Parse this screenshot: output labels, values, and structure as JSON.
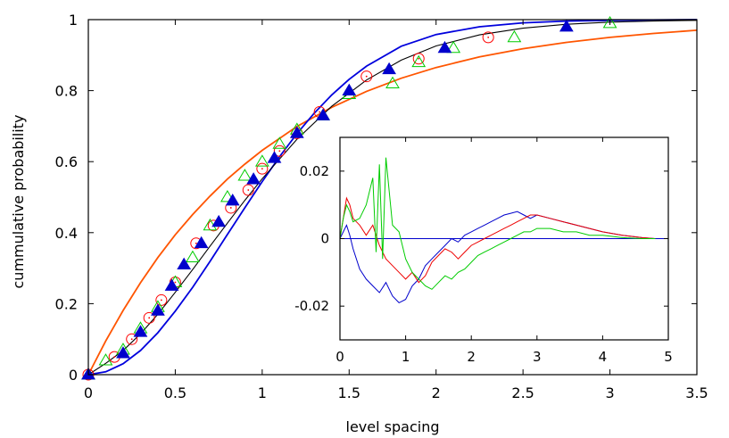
{
  "chart_data": [
    {
      "type": "line",
      "xlabel": "level spacing",
      "ylabel": "cummulative probability",
      "xlim": [
        0,
        3.5
      ],
      "ylim": [
        0,
        1
      ],
      "x_ticks": [
        "0",
        "0.5",
        "1",
        "1.5",
        "2",
        "2.5",
        "3",
        "3.5"
      ],
      "y_ticks": [
        "0",
        "0.2",
        "0.4",
        "0.6",
        "0.8",
        "1"
      ],
      "grid": false,
      "lines": [
        {
          "id": "orange-curve",
          "color": "#ff5500",
          "x": [
            0,
            0.1,
            0.2,
            0.3,
            0.4,
            0.5,
            0.6,
            0.7,
            0.8,
            0.9,
            1.0,
            1.2,
            1.4,
            1.6,
            1.8,
            2.0,
            2.25,
            2.5,
            2.75,
            3.0,
            3.25,
            3.5
          ],
          "y": [
            0,
            0.095,
            0.181,
            0.259,
            0.33,
            0.394,
            0.451,
            0.503,
            0.551,
            0.593,
            0.632,
            0.699,
            0.753,
            0.798,
            0.835,
            0.865,
            0.895,
            0.918,
            0.936,
            0.95,
            0.961,
            0.97
          ]
        },
        {
          "id": "blue-curve",
          "color": "#0000dd",
          "x": [
            0,
            0.1,
            0.2,
            0.3,
            0.4,
            0.5,
            0.6,
            0.7,
            0.8,
            0.9,
            1.0,
            1.1,
            1.2,
            1.3,
            1.4,
            1.5,
            1.6,
            1.8,
            2.0,
            2.25,
            2.5,
            2.75,
            3.0,
            3.5
          ],
          "y": [
            0,
            0.008,
            0.031,
            0.068,
            0.118,
            0.179,
            0.246,
            0.319,
            0.395,
            0.47,
            0.544,
            0.614,
            0.679,
            0.737,
            0.788,
            0.832,
            0.869,
            0.925,
            0.958,
            0.98,
            0.991,
            0.996,
            0.998,
            1.0
          ]
        },
        {
          "id": "black-curve",
          "color": "#000000",
          "x": [
            0,
            0.1,
            0.2,
            0.3,
            0.4,
            0.5,
            0.6,
            0.7,
            0.8,
            0.9,
            1.0,
            1.2,
            1.4,
            1.6,
            1.8,
            2.0,
            2.25,
            2.5,
            2.75,
            3.0,
            3.25,
            3.5
          ],
          "y": [
            0,
            0.032,
            0.068,
            0.115,
            0.17,
            0.232,
            0.296,
            0.362,
            0.427,
            0.491,
            0.552,
            0.663,
            0.756,
            0.83,
            0.886,
            0.926,
            0.957,
            0.976,
            0.987,
            0.993,
            0.996,
            0.998
          ]
        }
      ],
      "markers": [
        {
          "id": "red-circles",
          "shape": "circle",
          "color": "#ff0000",
          "x": [
            0,
            0.15,
            0.25,
            0.35,
            0.42,
            0.5,
            0.62,
            0.72,
            0.82,
            0.92,
            1.0,
            1.1,
            1.2,
            1.33,
            1.6,
            1.9,
            2.3
          ],
          "y": [
            0,
            0.05,
            0.1,
            0.16,
            0.21,
            0.26,
            0.37,
            0.42,
            0.47,
            0.52,
            0.58,
            0.63,
            0.68,
            0.74,
            0.84,
            0.89,
            0.95
          ]
        },
        {
          "id": "green-triangles",
          "shape": "triangle-open",
          "color": "#00cc00",
          "x": [
            0,
            0.1,
            0.2,
            0.3,
            0.4,
            0.5,
            0.6,
            0.7,
            0.8,
            0.9,
            1.0,
            1.1,
            1.2,
            1.35,
            1.5,
            1.75,
            1.9,
            2.1,
            2.45,
            3.0
          ],
          "y": [
            0,
            0.04,
            0.07,
            0.13,
            0.19,
            0.26,
            0.33,
            0.42,
            0.5,
            0.56,
            0.6,
            0.65,
            0.69,
            0.73,
            0.79,
            0.82,
            0.88,
            0.92,
            0.95,
            0.99
          ]
        },
        {
          "id": "blue-triangles",
          "shape": "triangle-filled",
          "color": "#0000cc",
          "x": [
            0,
            0.2,
            0.3,
            0.4,
            0.48,
            0.55,
            0.65,
            0.75,
            0.83,
            0.95,
            1.07,
            1.2,
            1.35,
            1.5,
            1.73,
            2.05,
            2.75
          ],
          "y": [
            0,
            0.06,
            0.12,
            0.18,
            0.25,
            0.31,
            0.37,
            0.43,
            0.49,
            0.55,
            0.61,
            0.68,
            0.73,
            0.8,
            0.86,
            0.92,
            0.98
          ]
        }
      ]
    },
    {
      "type": "line",
      "xlim": [
        0,
        5
      ],
      "ylim": [
        -0.03,
        0.03
      ],
      "x_ticks": [
        "0",
        "1",
        "2",
        "3",
        "4",
        "5"
      ],
      "y_ticks": [
        "-0.02",
        "0",
        "0.02"
      ],
      "series": [
        {
          "id": "inset-blue",
          "color": "#0000cc",
          "x": [
            0,
            0.05,
            0.1,
            0.15,
            0.2,
            0.3,
            0.4,
            0.5,
            0.6,
            0.7,
            0.8,
            0.9,
            1.0,
            1.1,
            1.2,
            1.3,
            1.4,
            1.5,
            1.6,
            1.7,
            1.8,
            1.9,
            2.0,
            2.1,
            2.2,
            2.3,
            2.4,
            2.5,
            2.6,
            2.7,
            2.8,
            2.9,
            3.0,
            3.2,
            3.4,
            3.6,
            3.8,
            4.0,
            4.3,
            4.6,
            4.8
          ],
          "y": [
            0.0,
            0.002,
            0.004,
            0.001,
            -0.003,
            -0.009,
            -0.012,
            -0.014,
            -0.016,
            -0.013,
            -0.017,
            -0.019,
            -0.018,
            -0.014,
            -0.012,
            -0.008,
            -0.006,
            -0.004,
            -0.002,
            0.0,
            -0.001,
            0.001,
            0.002,
            0.003,
            0.004,
            0.005,
            0.006,
            0.007,
            0.0075,
            0.008,
            0.007,
            0.006,
            0.007,
            0.006,
            0.005,
            0.004,
            0.003,
            0.002,
            0.001,
            0.0003,
            0.0
          ]
        },
        {
          "id": "inset-red",
          "color": "#ee0000",
          "x": [
            0,
            0.05,
            0.1,
            0.15,
            0.2,
            0.3,
            0.4,
            0.5,
            0.6,
            0.7,
            0.8,
            0.9,
            1.0,
            1.1,
            1.2,
            1.3,
            1.4,
            1.5,
            1.6,
            1.7,
            1.8,
            1.9,
            2.0,
            2.1,
            2.2,
            2.3,
            2.4,
            2.5,
            2.6,
            2.7,
            2.8,
            2.9,
            3.0,
            3.2,
            3.4,
            3.6,
            3.8,
            4.0,
            4.3,
            4.6,
            4.8
          ],
          "y": [
            0.0,
            0.006,
            0.012,
            0.01,
            0.006,
            0.004,
            0.001,
            0.004,
            -0.002,
            -0.006,
            -0.008,
            -0.01,
            -0.012,
            -0.01,
            -0.013,
            -0.011,
            -0.007,
            -0.005,
            -0.003,
            -0.004,
            -0.006,
            -0.004,
            -0.002,
            -0.001,
            0.0,
            0.001,
            0.002,
            0.003,
            0.004,
            0.005,
            0.006,
            0.007,
            0.007,
            0.006,
            0.005,
            0.004,
            0.003,
            0.002,
            0.001,
            0.0003,
            0.0
          ]
        },
        {
          "id": "inset-green",
          "color": "#00cc00",
          "x": [
            0,
            0.05,
            0.1,
            0.15,
            0.2,
            0.3,
            0.4,
            0.5,
            0.55,
            0.6,
            0.65,
            0.7,
            0.8,
            0.9,
            1.0,
            1.1,
            1.2,
            1.3,
            1.4,
            1.5,
            1.6,
            1.7,
            1.8,
            1.9,
            2.0,
            2.1,
            2.2,
            2.3,
            2.4,
            2.5,
            2.6,
            2.7,
            2.8,
            2.9,
            3.0,
            3.2,
            3.4,
            3.6,
            3.8,
            4.0,
            4.3,
            4.6,
            4.8
          ],
          "y": [
            0.0,
            0.006,
            0.01,
            0.008,
            0.005,
            0.006,
            0.01,
            0.018,
            -0.004,
            0.022,
            -0.006,
            0.024,
            0.004,
            0.002,
            -0.006,
            -0.01,
            -0.012,
            -0.014,
            -0.015,
            -0.013,
            -0.011,
            -0.012,
            -0.01,
            -0.009,
            -0.007,
            -0.005,
            -0.004,
            -0.003,
            -0.002,
            -0.001,
            0.0,
            0.001,
            0.002,
            0.002,
            0.003,
            0.003,
            0.002,
            0.002,
            0.001,
            0.001,
            0.0003,
            0.0,
            0.0
          ]
        }
      ]
    }
  ]
}
